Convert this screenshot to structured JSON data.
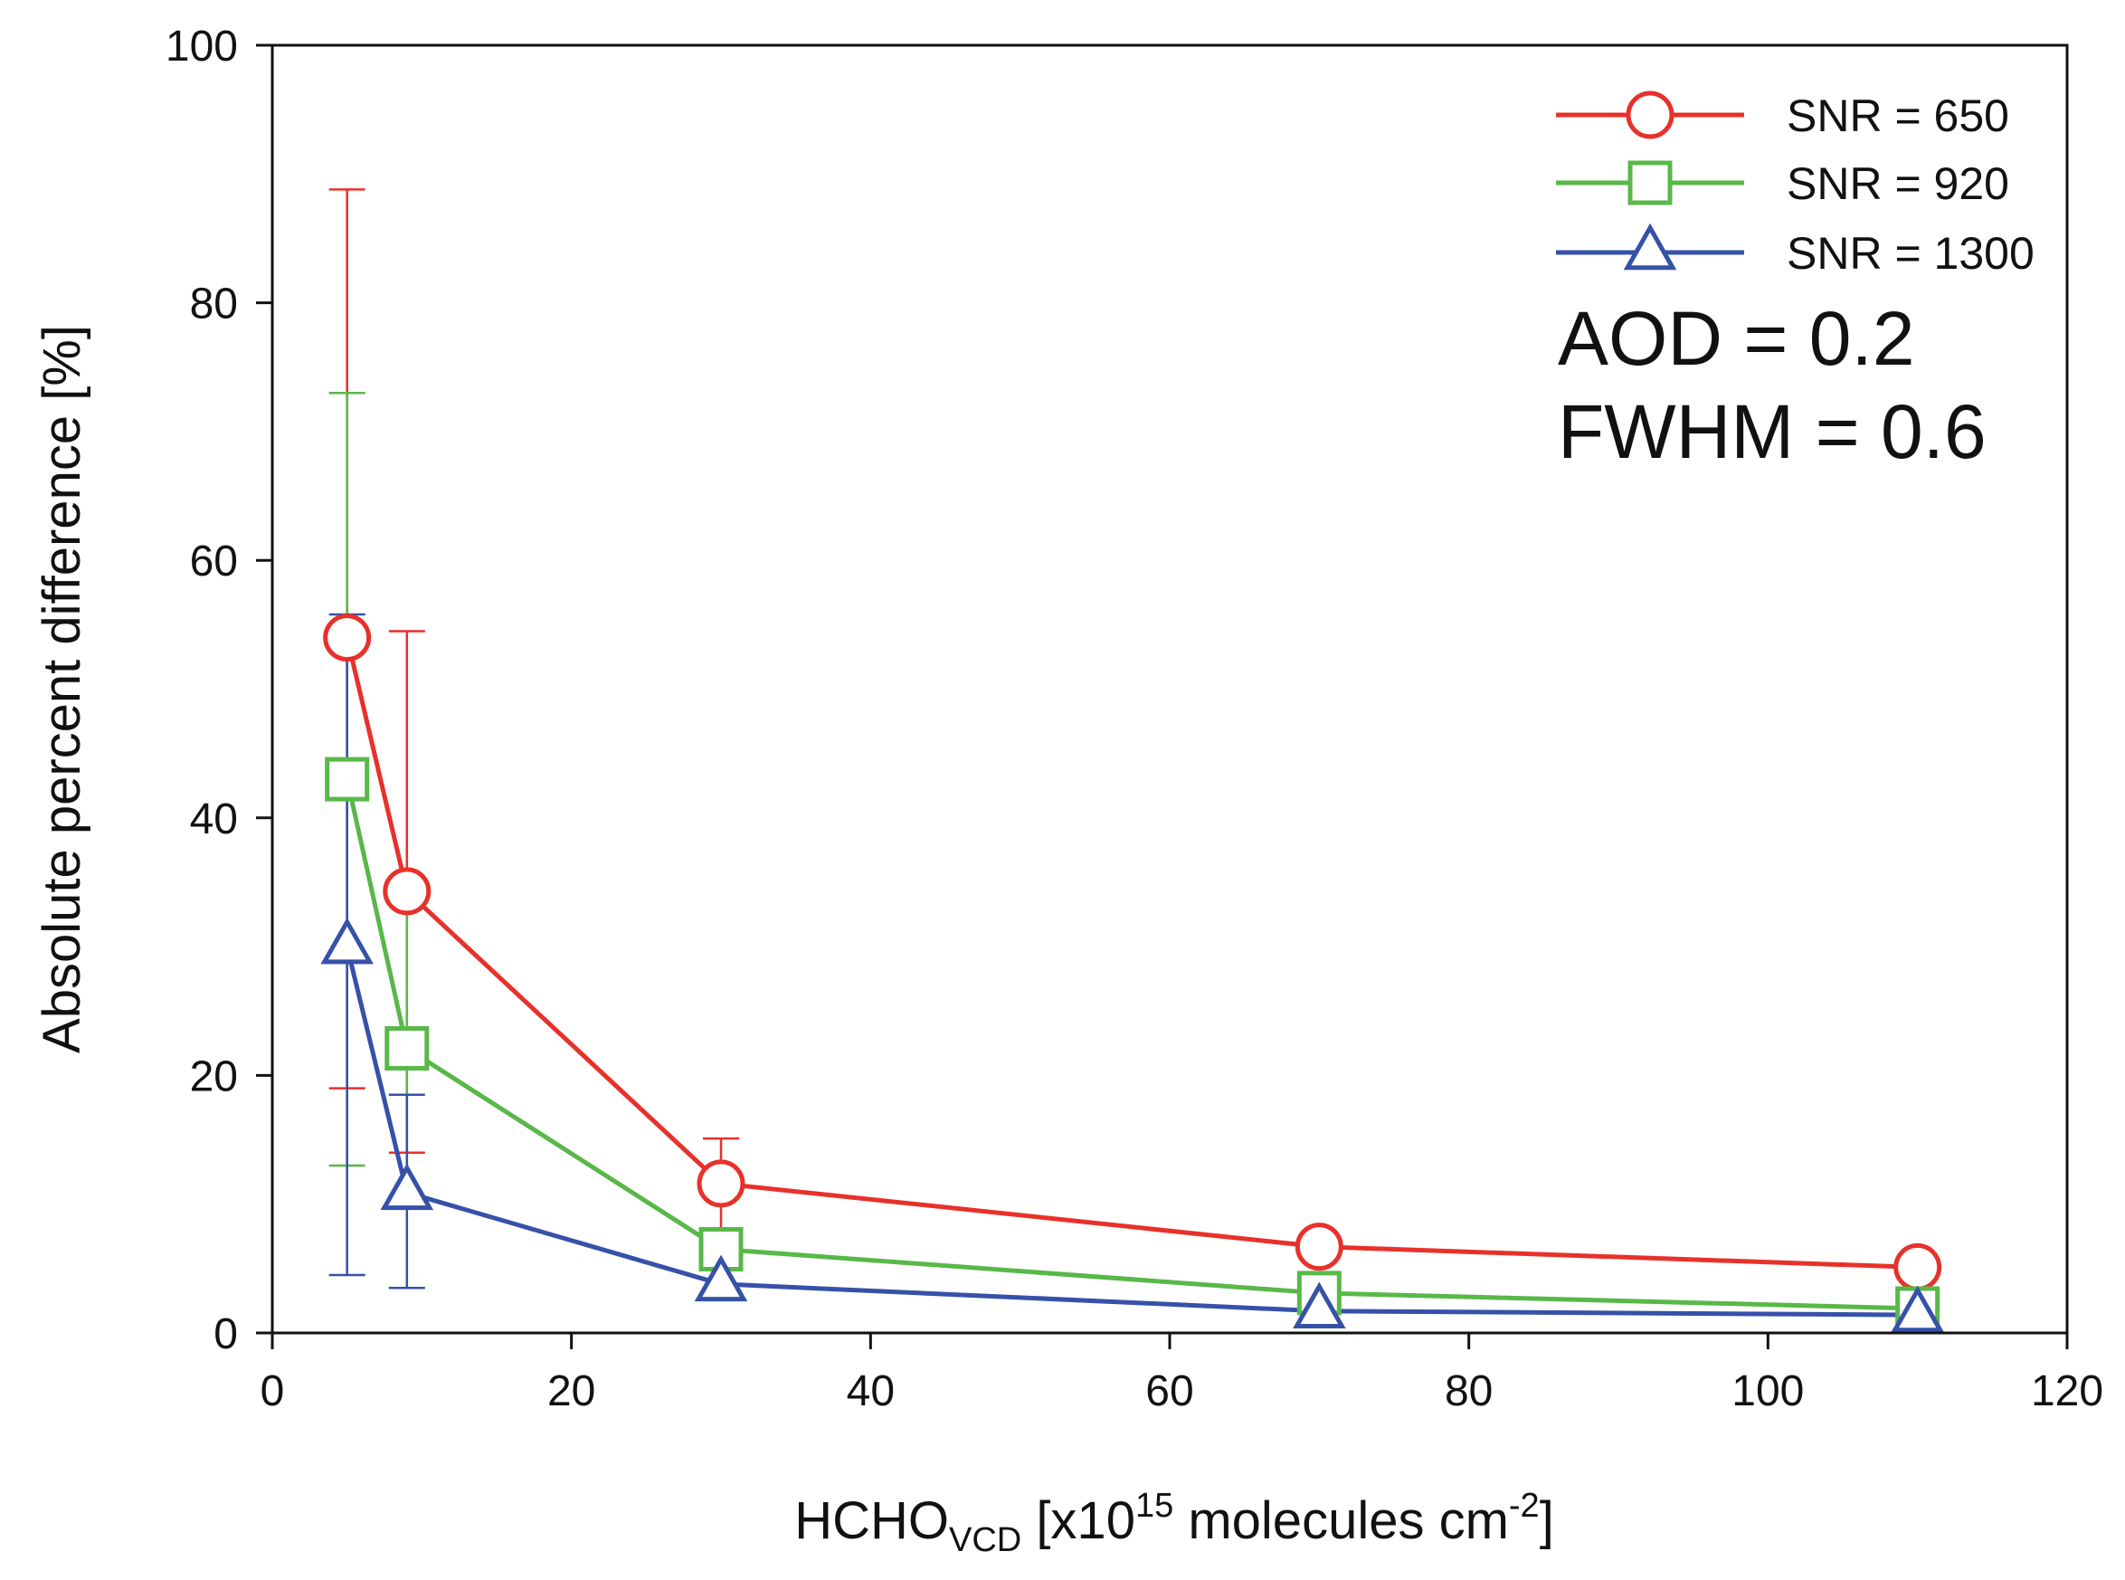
{
  "chart_data": {
    "type": "line",
    "title": "",
    "x": [
      5,
      9,
      30,
      70,
      110
    ],
    "xlim": [
      0,
      120
    ],
    "ylim": [
      0,
      100
    ],
    "xticks": [
      0,
      20,
      40,
      60,
      80,
      100,
      120
    ],
    "yticks": [
      0,
      20,
      40,
      60,
      80,
      100
    ],
    "xlabel": {
      "main": "HCHO",
      "sub": "VCD",
      "mid": " [x10",
      "sup1": "15",
      "tail": " molecules cm",
      "sup2": "-2",
      "end": "]"
    },
    "ylabel": "Absolute percent difference [%]",
    "grid": false,
    "legend_position": "top-right",
    "series": [
      {
        "name": "SNR = 650",
        "color": "#e8312a",
        "marker": "circle",
        "values": [
          54,
          34.3,
          11.6,
          6.7,
          5.1
        ],
        "error_upper": [
          88.8,
          54.5,
          15.1,
          null,
          null
        ],
        "error_lower": [
          19.0,
          14.0,
          8.0,
          null,
          null
        ]
      },
      {
        "name": "SNR = 920",
        "color": "#58b848",
        "marker": "square",
        "values": [
          43,
          22.1,
          6.5,
          3.1,
          1.9
        ],
        "error_upper": [
          73.0,
          34.5,
          null,
          null,
          null
        ],
        "error_lower": [
          13.0,
          10.5,
          null,
          null,
          null
        ]
      },
      {
        "name": "SNR = 1300",
        "color": "#3651a8",
        "marker": "triangle",
        "values": [
          30,
          10.9,
          3.8,
          1.7,
          1.4
        ],
        "error_upper": [
          55.8,
          18.5,
          null,
          null,
          null
        ],
        "error_lower": [
          4.5,
          3.5,
          null,
          null,
          null
        ]
      }
    ],
    "annotations": [
      "AOD = 0.2",
      "FWHM = 0.6"
    ]
  }
}
